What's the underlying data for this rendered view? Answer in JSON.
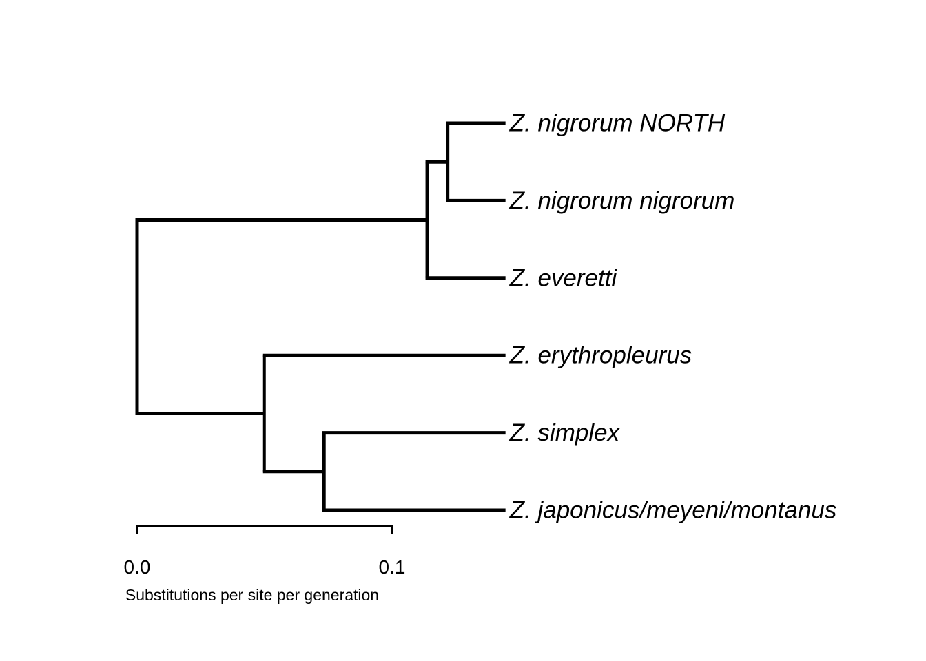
{
  "tree": {
    "tips": [
      {
        "id": "t1",
        "label": "Z. nigrorum NORTH",
        "x": 0.1445
      },
      {
        "id": "t2",
        "label": "Z. nigrorum nigrorum",
        "x": 0.1445
      },
      {
        "id": "t3",
        "label": "Z. everetti",
        "x": 0.1445
      },
      {
        "id": "t4",
        "label": "Z. erythropleurus",
        "x": 0.1445
      },
      {
        "id": "t5",
        "label": "Z. simplex",
        "x": 0.1445
      },
      {
        "id": "t6",
        "label": "Z. japonicus/meyeni/montanus",
        "x": 0.1445
      }
    ],
    "internal_nodes": [
      {
        "id": "root",
        "x": 0.0,
        "children": [
          "n_nig_all",
          "n_south"
        ]
      },
      {
        "id": "n_nig_all",
        "x": 0.1138,
        "children": [
          "n_nig",
          "t3"
        ]
      },
      {
        "id": "n_nig",
        "x": 0.1218,
        "children": [
          "t1",
          "t2"
        ]
      },
      {
        "id": "n_south",
        "x": 0.0498,
        "children": [
          "t4",
          "n_simp"
        ]
      },
      {
        "id": "n_simp",
        "x": 0.0733,
        "children": [
          "t5",
          "t6"
        ]
      }
    ]
  },
  "scale_bar": {
    "start": 0.0,
    "end": 0.1,
    "tick_labels": [
      "0.0",
      "0.1"
    ],
    "title": "Substitutions per site per generation"
  }
}
